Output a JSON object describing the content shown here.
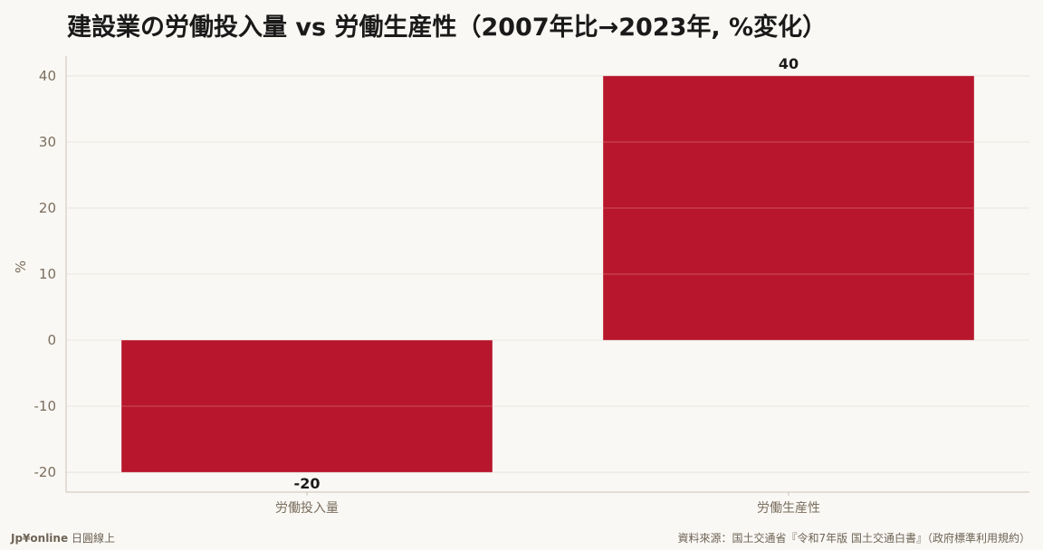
{
  "colors": {
    "bar": "#b8162c",
    "grid": "#e2ddd4",
    "axis": "#c9c2b6",
    "background": "#faf8f4"
  },
  "chart_data": {
    "type": "bar",
    "title": "建設業の労働投入量 vs 労働生産性（2007年比→2023年, %変化）",
    "xlabel": "",
    "ylabel": "%",
    "categories": [
      "労働投入量",
      "労働生産性"
    ],
    "values": [
      -20,
      40
    ],
    "value_labels": [
      "-20",
      "40"
    ],
    "ylim": [
      -23,
      43
    ],
    "yticks": [
      -20,
      -10,
      0,
      10,
      20,
      30,
      40
    ],
    "ytick_labels": [
      "-20",
      "-10",
      "0",
      "10",
      "20",
      "30",
      "40"
    ],
    "grid": true,
    "legend": "none"
  },
  "footer": {
    "brand": "Jp¥online",
    "brand_suffix": "日圓線上",
    "source": "資料來源：国土交通省『令和7年版 国土交通白書』（政府標準利用規約）"
  }
}
